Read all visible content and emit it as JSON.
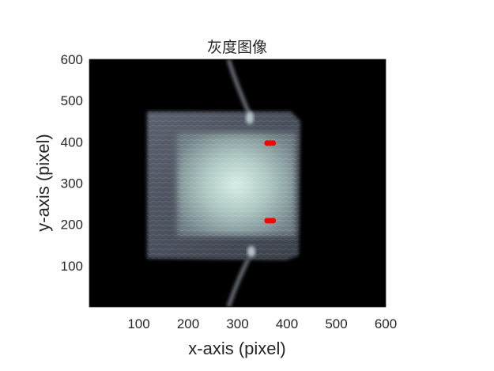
{
  "chart_data": {
    "type": "scatter",
    "title": "灰度图像",
    "xlabel": "x-axis (pixel)",
    "ylabel": "y-axis (pixel)",
    "xlim": [
      0,
      600
    ],
    "ylim": [
      0,
      600
    ],
    "xticks": [
      "100",
      "200",
      "300",
      "400",
      "500",
      "600"
    ],
    "yticks": [
      "100",
      "200",
      "300",
      "400",
      "500",
      "600"
    ],
    "background_image": "grayscale-photo-of-square-sample",
    "marker_color": "#ff0000",
    "points": [
      {
        "x": 360,
        "y": 397
      },
      {
        "x": 366,
        "y": 397
      },
      {
        "x": 372,
        "y": 397
      },
      {
        "x": 360,
        "y": 209
      },
      {
        "x": 366,
        "y": 209
      },
      {
        "x": 372,
        "y": 209
      }
    ]
  }
}
